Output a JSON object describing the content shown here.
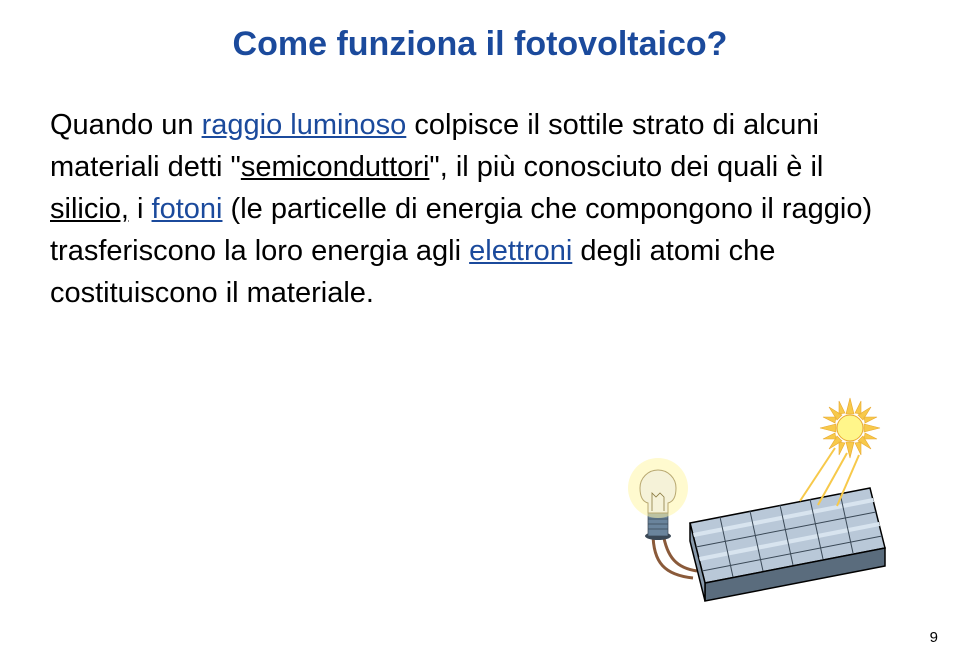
{
  "title": {
    "text": "Come funziona il fotovoltaico?",
    "color": "#1b4a9c"
  },
  "paragraph": {
    "parts": [
      {
        "text": "Quando un ",
        "style": "plain"
      },
      {
        "text": "raggio luminoso",
        "style": "link"
      },
      {
        "text": " colpisce il sottile strato di alcuni materiali detti \"",
        "style": "plain"
      },
      {
        "text": "semiconduttori",
        "style": "underline"
      },
      {
        "text": "\", il più conosciuto dei quali è il ",
        "style": "plain"
      },
      {
        "text": "silicio,",
        "style": "underline"
      },
      {
        "text": " i ",
        "style": "plain"
      },
      {
        "text": "fotoni",
        "style": "link"
      },
      {
        "text": " (le particelle di energia che compongono il raggio) trasferiscono la loro energia agli ",
        "style": "plain"
      },
      {
        "text": "elettroni",
        "style": "link"
      },
      {
        "text": " degli atomi che costituiscono il materiale.",
        "style": "plain"
      }
    ],
    "text_color": "#000000",
    "link_color": "#1b4a9c",
    "fontsize": 29
  },
  "diagram": {
    "panel_top_color": "#b9c8d8",
    "panel_side_color": "#8799ab",
    "panel_front_color": "#5a6c7d",
    "grid_line_color": "#3a4856",
    "grid_highlight_color": "#d8e4ef",
    "bulb_glass_color": "#f5f2d8",
    "bulb_glow_color": "#fff6a8",
    "bulb_base_color": "#6a849c",
    "bulb_holder_color": "#3a4856",
    "wire_color": "#8a5a3a",
    "sun_core_color": "#fff68a",
    "sun_ray_color": "#f7c94a",
    "sun_outline_color": "#e8a830",
    "border_color": "#000000"
  },
  "page_number": "9",
  "background_color": "#ffffff"
}
